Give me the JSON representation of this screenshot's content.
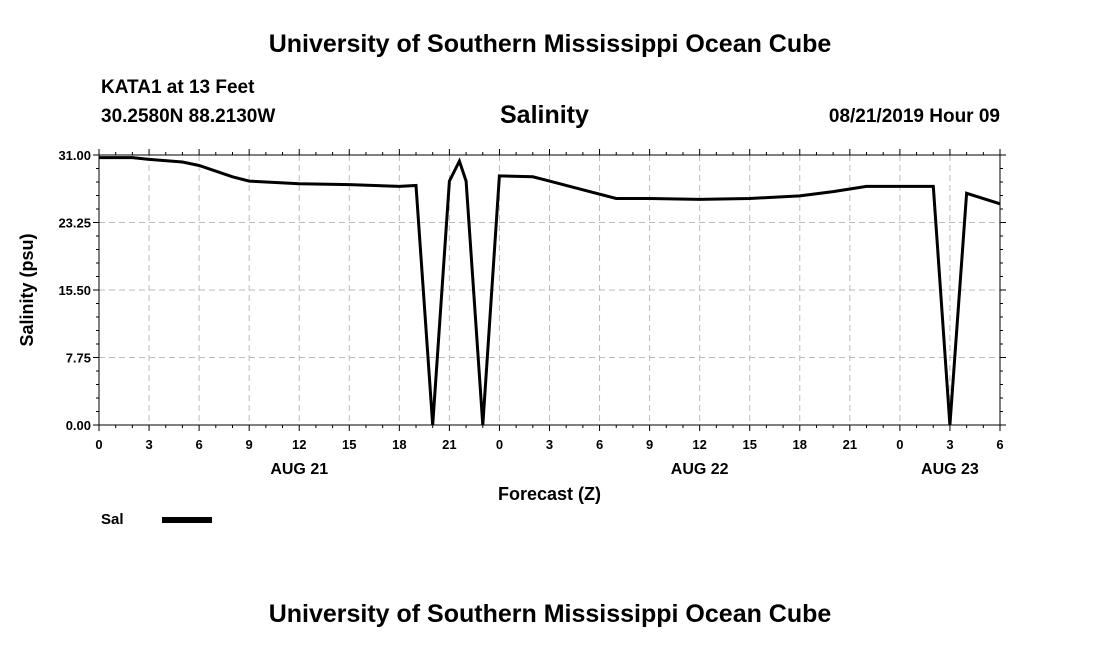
{
  "header": {
    "title": "University of Southern Mississippi Ocean Cube",
    "station": "KATA1 at 13 Feet",
    "coords": "30.2580N 88.2130W",
    "variable": "Salinity",
    "datetime": "08/21/2019 Hour 09"
  },
  "footer": {
    "title": "University of Southern Mississippi Ocean Cube"
  },
  "chart_data": {
    "type": "line",
    "title": "Salinity",
    "xlabel": "Forecast (Z)",
    "ylabel": "Salinity (psu)",
    "xlim": [
      0,
      54
    ],
    "ylim": [
      0,
      31
    ],
    "y_ticks": [
      "0.00",
      "7.75",
      "15.50",
      "23.25",
      "31.00"
    ],
    "x_ticks": [
      {
        "h": 0,
        "label": "0"
      },
      {
        "h": 3,
        "label": "3"
      },
      {
        "h": 6,
        "label": "6"
      },
      {
        "h": 9,
        "label": "9"
      },
      {
        "h": 12,
        "label": "12"
      },
      {
        "h": 15,
        "label": "15"
      },
      {
        "h": 18,
        "label": "18"
      },
      {
        "h": 21,
        "label": "21"
      },
      {
        "h": 24,
        "label": "0"
      },
      {
        "h": 27,
        "label": "3"
      },
      {
        "h": 30,
        "label": "6"
      },
      {
        "h": 33,
        "label": "9"
      },
      {
        "h": 36,
        "label": "12"
      },
      {
        "h": 39,
        "label": "15"
      },
      {
        "h": 42,
        "label": "18"
      },
      {
        "h": 45,
        "label": "21"
      },
      {
        "h": 48,
        "label": "0"
      },
      {
        "h": 51,
        "label": "3"
      },
      {
        "h": 54,
        "label": "6"
      }
    ],
    "day_labels": [
      {
        "h": 12,
        "label": "AUG 21"
      },
      {
        "h": 36,
        "label": "AUG 22"
      },
      {
        "h": 51,
        "label": "AUG 23"
      }
    ],
    "grid": true,
    "legend": "bottom-left",
    "series": [
      {
        "name": "Sal",
        "color": "#000000",
        "x": [
          0,
          2,
          3,
          5,
          6,
          8,
          9,
          12,
          15,
          18,
          19,
          20,
          21,
          21.6,
          22,
          23,
          24,
          26,
          27,
          29,
          31,
          33,
          36,
          39,
          42,
          44,
          46,
          48,
          50,
          51,
          52,
          54
        ],
        "values": [
          30.7,
          30.7,
          30.5,
          30.2,
          29.8,
          28.5,
          28.0,
          27.7,
          27.6,
          27.4,
          27.5,
          0.0,
          28.0,
          30.3,
          28.0,
          0.0,
          28.6,
          28.5,
          28.0,
          27.0,
          26.0,
          26.0,
          25.9,
          26.0,
          26.3,
          26.8,
          27.4,
          27.4,
          27.4,
          0.0,
          26.6,
          25.4
        ]
      }
    ]
  }
}
